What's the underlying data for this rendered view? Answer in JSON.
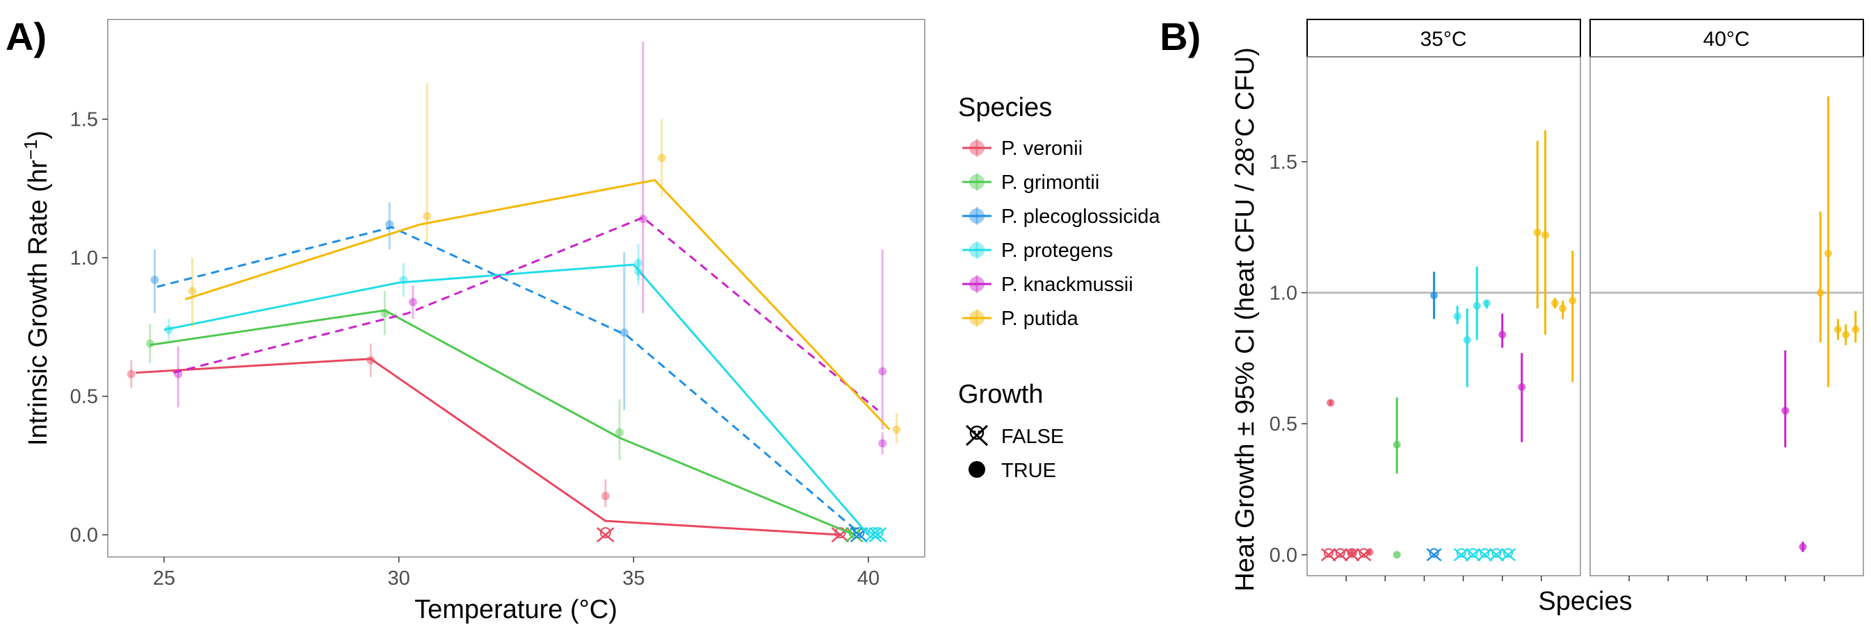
{
  "panel_a": {
    "tag": "A)",
    "chart_data": {
      "type": "line",
      "xlabel": "Temperature (°C)",
      "ylabel_main": "Intrinsic Growth Rate (hr",
      "ylabel_sup": "−1",
      "ylabel_end": ")",
      "xlim": [
        23.8,
        41.2
      ],
      "ylim": [
        -0.08,
        1.86
      ],
      "xticks": [
        25,
        30,
        35,
        40
      ],
      "yticks": [
        0.0,
        0.5,
        1.0,
        1.5
      ],
      "ytick_labels": [
        "0.0",
        "0.5",
        "1.0",
        "1.5"
      ],
      "temperatures": [
        25,
        30,
        35,
        40
      ],
      "series": [
        {
          "name": "P. veronii",
          "color": "#e8485f",
          "dashed": false,
          "offset": -0.6,
          "mean": [
            0.585,
            0.635,
            0.05,
            0.0
          ],
          "points": [
            {
              "x": 24.3,
              "y": 0.58,
              "lo": 0.53,
              "hi": 0.63
            },
            {
              "x": 29.4,
              "y": 0.63,
              "lo": 0.57,
              "hi": 0.69
            },
            {
              "x": 34.4,
              "y": 0.14,
              "lo": 0.1,
              "hi": 0.2
            }
          ],
          "no_growth": [
            {
              "x": 34.4,
              "y": 0.0
            },
            {
              "x": 39.4,
              "y": 0.0
            }
          ]
        },
        {
          "name": "P. grimontii",
          "color": "#4ec94e",
          "dashed": false,
          "offset": -0.3,
          "mean": [
            0.685,
            0.81,
            0.35,
            0.0
          ],
          "points": [
            {
              "x": 24.7,
              "y": 0.69,
              "lo": 0.62,
              "hi": 0.76
            },
            {
              "x": 29.7,
              "y": 0.8,
              "lo": 0.72,
              "hi": 0.88
            },
            {
              "x": 34.7,
              "y": 0.37,
              "lo": 0.27,
              "hi": 0.49
            }
          ],
          "no_growth": [
            {
              "x": 39.7,
              "y": 0.0
            }
          ]
        },
        {
          "name": "P. plecoglossicida",
          "color": "#1e8fe6",
          "dashed": true,
          "offset": -0.15,
          "mean": [
            0.895,
            1.11,
            0.72,
            0.0
          ],
          "points": [
            {
              "x": 24.8,
              "y": 0.92,
              "lo": 0.8,
              "hi": 1.03
            },
            {
              "x": 29.8,
              "y": 1.12,
              "lo": 1.03,
              "hi": 1.2
            },
            {
              "x": 34.8,
              "y": 0.73,
              "lo": 0.45,
              "hi": 1.02
            }
          ],
          "no_growth": [
            {
              "x": 39.8,
              "y": 0.0
            }
          ]
        },
        {
          "name": "P. protegens",
          "color": "#22dde8",
          "dashed": false,
          "offset": 0.0,
          "mean": [
            0.74,
            0.91,
            0.975,
            0.0
          ],
          "points": [
            {
              "x": 25.1,
              "y": 0.74,
              "lo": 0.7,
              "hi": 0.78
            },
            {
              "x": 30.1,
              "y": 0.92,
              "lo": 0.86,
              "hi": 0.98
            },
            {
              "x": 35.1,
              "y": 0.98,
              "lo": 0.92,
              "hi": 1.05
            },
            {
              "x": 35.1,
              "y": 0.95,
              "lo": 0.9,
              "hi": 1.0
            }
          ],
          "no_growth": [
            {
              "x": 40.1,
              "y": 0.0
            },
            {
              "x": 40.2,
              "y": 0.0
            }
          ]
        },
        {
          "name": "P. knackmussii",
          "color": "#cc22cc",
          "dashed": true,
          "offset": 0.2,
          "mean": [
            0.585,
            0.8,
            1.145,
            0.45
          ],
          "points": [
            {
              "x": 25.3,
              "y": 0.58,
              "lo": 0.46,
              "hi": 0.68
            },
            {
              "x": 30.3,
              "y": 0.84,
              "lo": 0.78,
              "hi": 0.9
            },
            {
              "x": 35.2,
              "y": 1.14,
              "lo": 0.8,
              "hi": 1.78
            },
            {
              "x": 40.3,
              "y": 0.59,
              "lo": 0.38,
              "hi": 1.03
            },
            {
              "x": 40.3,
              "y": 0.33,
              "lo": 0.29,
              "hi": 0.37
            }
          ],
          "no_growth": []
        },
        {
          "name": "P. putida",
          "color": "#f5b800",
          "dashed": false,
          "offset": 0.45,
          "mean": [
            0.85,
            1.12,
            1.28,
            0.38
          ],
          "points": [
            {
              "x": 25.6,
              "y": 0.88,
              "lo": 0.75,
              "hi": 1.0
            },
            {
              "x": 30.6,
              "y": 1.15,
              "lo": 1.06,
              "hi": 1.63
            },
            {
              "x": 35.6,
              "y": 1.36,
              "lo": 1.22,
              "hi": 1.5
            },
            {
              "x": 40.6,
              "y": 0.38,
              "lo": 0.33,
              "hi": 0.44
            }
          ],
          "no_growth": []
        }
      ]
    }
  },
  "legend": {
    "species_title": "Species",
    "growth_title": "Growth",
    "growth_items": [
      {
        "label": "FALSE",
        "marker": "skull-and-crossbones-icon"
      },
      {
        "label": "TRUE",
        "marker": "filled-circle"
      }
    ]
  },
  "panel_b": {
    "tag": "B)",
    "chart_data": {
      "type": "scatter",
      "xlabel": "Species",
      "ylabel": "Heat Growth ± 95% CI (heat CFU / 28°C CFU)",
      "ylim": [
        -0.08,
        1.9
      ],
      "yticks": [
        0.0,
        0.5,
        1.0,
        1.5
      ],
      "ytick_labels": [
        "0.0",
        "0.5",
        "1.0",
        "1.5"
      ],
      "reference_line": 1.0,
      "x_categories": 6,
      "facets": [
        {
          "label": "35°C",
          "points": [
            {
              "x": 0.6,
              "y": 0.58,
              "lo": 0.57,
              "hi": 0.59,
              "species": 0
            },
            {
              "x": 1.15,
              "y": 0.01,
              "lo": 0.0,
              "hi": 0.02,
              "species": 0
            },
            {
              "x": 1.6,
              "y": 0.01,
              "lo": 0.0,
              "hi": 0.02,
              "species": 0
            },
            {
              "x": 2.3,
              "y": 0.42,
              "lo": 0.31,
              "hi": 0.6,
              "species": 1
            },
            {
              "x": 3.25,
              "y": 0.99,
              "lo": 0.9,
              "hi": 1.08,
              "species": 2
            },
            {
              "x": 3.85,
              "y": 0.91,
              "lo": 0.88,
              "hi": 0.95,
              "species": 3
            },
            {
              "x": 4.1,
              "y": 0.82,
              "lo": 0.64,
              "hi": 0.94,
              "species": 3
            },
            {
              "x": 4.35,
              "y": 0.95,
              "lo": 0.82,
              "hi": 1.1,
              "species": 3
            },
            {
              "x": 4.6,
              "y": 0.96,
              "lo": 0.94,
              "hi": 0.97,
              "species": 3
            },
            {
              "x": 5.0,
              "y": 0.84,
              "lo": 0.79,
              "hi": 0.92,
              "species": 4
            },
            {
              "x": 5.5,
              "y": 0.64,
              "lo": 0.43,
              "hi": 0.77,
              "species": 4
            },
            {
              "x": 5.9,
              "y": 1.23,
              "lo": 0.94,
              "hi": 1.58,
              "species": 5
            },
            {
              "x": 6.1,
              "y": 1.22,
              "lo": 0.84,
              "hi": 1.62,
              "species": 5
            },
            {
              "x": 6.35,
              "y": 0.96,
              "lo": 0.94,
              "hi": 0.98,
              "species": 5
            },
            {
              "x": 6.55,
              "y": 0.94,
              "lo": 0.9,
              "hi": 0.97,
              "species": 5
            },
            {
              "x": 6.8,
              "y": 0.97,
              "lo": 0.66,
              "hi": 1.16,
              "species": 5
            }
          ],
          "no_growth": [
            {
              "x": 0.55,
              "species": 0
            },
            {
              "x": 0.85,
              "species": 0
            },
            {
              "x": 1.15,
              "species": 0
            },
            {
              "x": 1.45,
              "species": 0
            },
            {
              "x": 3.25,
              "species": 2
            },
            {
              "x": 3.95,
              "species": 3
            },
            {
              "x": 4.25,
              "species": 3
            },
            {
              "x": 4.55,
              "species": 3
            },
            {
              "x": 4.85,
              "species": 3
            },
            {
              "x": 5.15,
              "species": 3
            }
          ],
          "zero_points": [
            {
              "x": 2.3,
              "species": 1
            }
          ]
        },
        {
          "label": "40°C",
          "points": [
            {
              "x": 5.0,
              "y": 0.55,
              "lo": 0.41,
              "hi": 0.78,
              "species": 4
            },
            {
              "x": 5.45,
              "y": 0.03,
              "lo": 0.01,
              "hi": 0.05,
              "species": 4
            },
            {
              "x": 5.9,
              "y": 1.0,
              "lo": 0.81,
              "hi": 1.31,
              "species": 5
            },
            {
              "x": 6.1,
              "y": 1.15,
              "lo": 0.64,
              "hi": 1.75,
              "species": 5
            },
            {
              "x": 6.35,
              "y": 0.86,
              "lo": 0.82,
              "hi": 0.9,
              "species": 5
            },
            {
              "x": 6.55,
              "y": 0.84,
              "lo": 0.8,
              "hi": 0.88,
              "species": 5
            },
            {
              "x": 6.8,
              "y": 0.86,
              "lo": 0.81,
              "hi": 0.93,
              "species": 5
            }
          ],
          "no_growth": [],
          "zero_points": []
        }
      ]
    }
  }
}
